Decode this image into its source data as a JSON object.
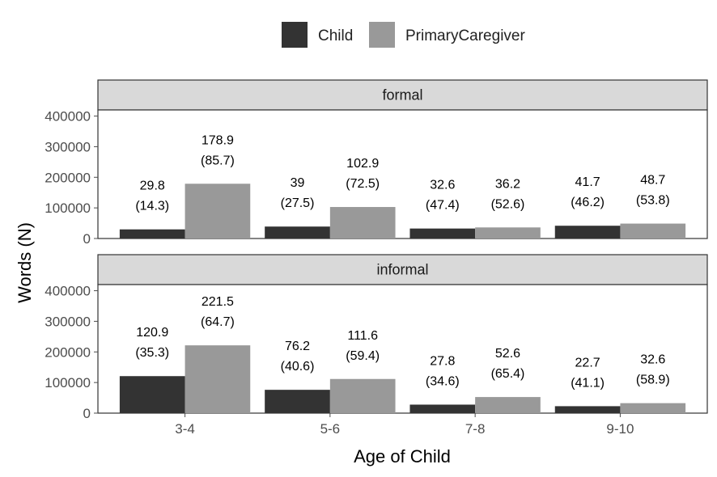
{
  "chart_data": {
    "type": "bar",
    "xlabel": "Age of Child",
    "ylabel": "Words (N)",
    "categories": [
      "3-4",
      "5-6",
      "7-8",
      "9-10"
    ],
    "ylim": [
      0,
      420000
    ],
    "yticks": [
      "0",
      "100000",
      "200000",
      "300000",
      "400000"
    ],
    "ytick_values": [
      0,
      100000,
      200000,
      300000,
      400000
    ],
    "legend": {
      "position": "top",
      "items": [
        {
          "name": "Child",
          "color": "#333333"
        },
        {
          "name": "PrimaryCaregiver",
          "color": "#999999"
        }
      ]
    },
    "panels": [
      {
        "title": "formal",
        "series": [
          {
            "name": "Child",
            "values": [
              29800,
              39000,
              32600,
              41700
            ],
            "labels": [
              "29.8",
              "39",
              "32.6",
              "41.7"
            ],
            "percent_labels": [
              "(14.3)",
              "(27.5)",
              "(47.4)",
              "(46.2)"
            ]
          },
          {
            "name": "PrimaryCaregiver",
            "values": [
              178900,
              102900,
              36200,
              48700
            ],
            "labels": [
              "178.9",
              "102.9",
              "36.2",
              "48.7"
            ],
            "percent_labels": [
              "(85.7)",
              "(72.5)",
              "(52.6)",
              "(53.8)"
            ]
          }
        ]
      },
      {
        "title": "informal",
        "series": [
          {
            "name": "Child",
            "values": [
              120900,
              76200,
              27800,
              22700
            ],
            "labels": [
              "120.9",
              "76.2",
              "27.8",
              "22.7"
            ],
            "percent_labels": [
              "(35.3)",
              "(40.6)",
              "(34.6)",
              "(41.1)"
            ]
          },
          {
            "name": "PrimaryCaregiver",
            "values": [
              221500,
              111600,
              52600,
              32600
            ],
            "labels": [
              "221.5",
              "111.6",
              "52.6",
              "32.6"
            ],
            "percent_labels": [
              "(64.7)",
              "(59.4)",
              "(65.4)",
              "(58.9)"
            ]
          }
        ]
      }
    ],
    "style": {
      "strip_fill": "#d9d9d9",
      "panel_border": "#333333",
      "tick_color": "#4d4d4d"
    }
  }
}
